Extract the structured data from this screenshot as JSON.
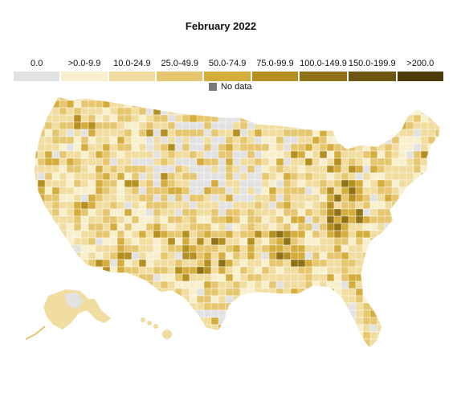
{
  "title": "February 2022",
  "legend": [
    {
      "label": "0.0",
      "color": "#e2e2e2"
    },
    {
      "label": ">0.0-9.9",
      "color": "#f8efcc"
    },
    {
      "label": "10.0-24.9",
      "color": "#f0dd9f"
    },
    {
      "label": "25.0-49.9",
      "color": "#e6c770"
    },
    {
      "label": "50.0-74.9",
      "color": "#d5ad3d"
    },
    {
      "label": "75.0-99.9",
      "color": "#b58f22"
    },
    {
      "label": "100.0-149.9",
      "color": "#8f7118"
    },
    {
      "label": "150.0-199.9",
      "color": "#6e5512"
    },
    {
      "label": ">200.0",
      "color": "#4c3a0b"
    }
  ],
  "no_data": {
    "label": "No data",
    "color": "#7a7a7a"
  },
  "map_colors": {
    "border": "#ffffff",
    "base": "#f0dd9f",
    "light": "#f8efcc",
    "grey": "#e2e2e2"
  }
}
